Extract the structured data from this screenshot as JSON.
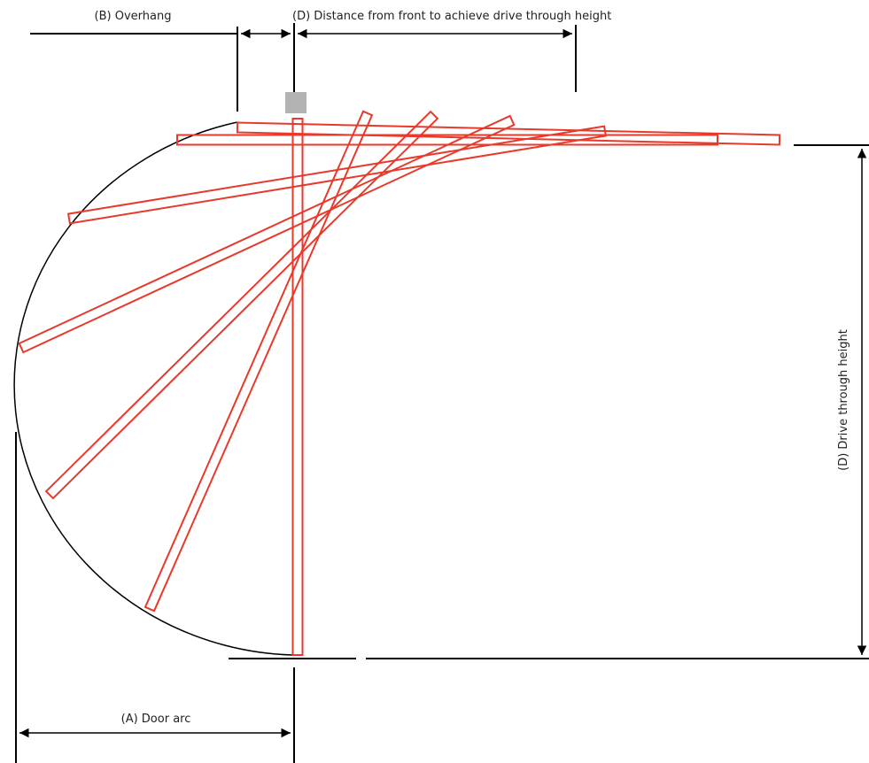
{
  "labels": {
    "overhang": "(B) Overhang",
    "front_distance": "(D) Distance from front to achieve drive through height",
    "drive_height": "(D) Drive through height",
    "door_arc": "(A) Door arc"
  },
  "colors": {
    "panel": "#e8392b",
    "line": "#000000",
    "roller": "#b3b3b3"
  },
  "icons": {
    "roller": "grey-square-roller-icon"
  }
}
